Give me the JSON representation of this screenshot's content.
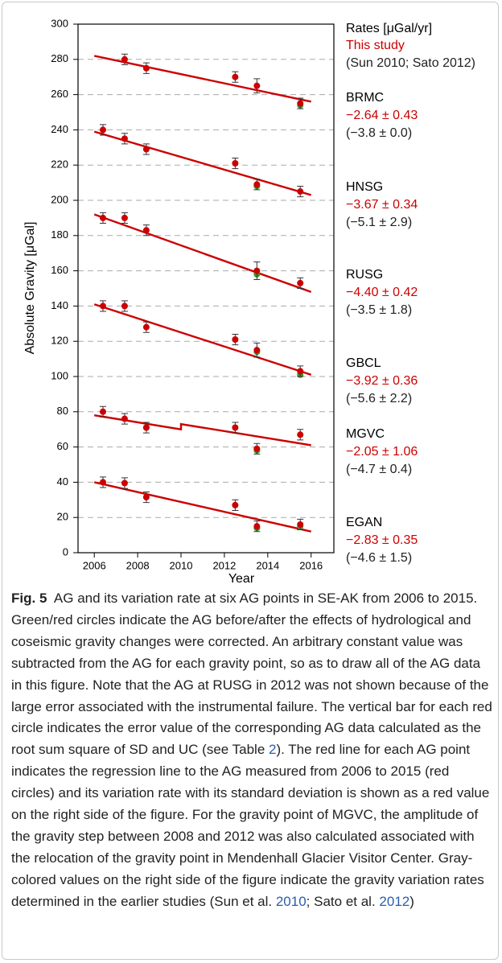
{
  "chart_data": {
    "type": "scatter",
    "x_label": "Year",
    "y_label": "Absolute Gravity [μGal]",
    "xlim": [
      2005.25,
      2017.05
    ],
    "xticks": [
      2006,
      2008,
      2010,
      2012,
      2014,
      2016
    ],
    "ylim": [
      0,
      300
    ],
    "yticks": [
      0,
      20,
      40,
      60,
      80,
      100,
      120,
      140,
      160,
      180,
      200,
      220,
      240,
      260,
      280,
      300
    ],
    "grid": true,
    "side_header": [
      "Rates [μGal/yr]",
      "This study",
      "(Sun 2010; Sato 2012)"
    ],
    "x": [
      2006.4,
      2007.4,
      2008.4,
      2012.5,
      2013.5,
      2015.5
    ],
    "color": "#cc0000",
    "before_color": "#3a9a2a",
    "series": [
      {
        "name": "BRMC",
        "values": [
          null,
          280,
          275,
          270,
          265,
          255
        ],
        "errors": [
          null,
          3,
          3,
          3,
          4,
          3
        ],
        "before_values": [
          null,
          null,
          null,
          null,
          null,
          254
        ],
        "rate_label": "−2.64 ± 0.43",
        "earlier_label": "(−3.8 ± 0.0)",
        "fit_x": [
          2006,
          2016
        ],
        "fit_values": [
          282,
          256
        ]
      },
      {
        "name": "HNSG",
        "values": [
          240,
          235,
          229,
          221,
          209,
          205
        ],
        "errors": [
          3,
          3,
          3,
          3,
          3,
          3
        ],
        "before_values": [
          null,
          null,
          null,
          null,
          208,
          null
        ],
        "rate_label": "−3.67 ± 0.34",
        "earlier_label": "(−5.1 ± 2.9)",
        "fit_x": [
          2006,
          2016
        ],
        "fit_values": [
          239,
          203
        ]
      },
      {
        "name": "RUSG",
        "values": [
          190,
          190,
          183,
          null,
          160,
          153
        ],
        "errors": [
          3,
          3,
          3,
          null,
          5,
          3
        ],
        "before_values": [
          null,
          null,
          null,
          null,
          158,
          null
        ],
        "rate_label": "−4.40 ± 0.42",
        "earlier_label": "(−3.5 ± 1.8)",
        "fit_x": [
          2006,
          2016
        ],
        "fit_values": [
          192,
          148
        ]
      },
      {
        "name": "GBCL",
        "values": [
          140,
          140,
          128,
          121,
          115,
          103
        ],
        "errors": [
          3,
          3,
          3,
          3,
          4,
          3
        ],
        "before_values": [
          null,
          null,
          null,
          null,
          114,
          101
        ],
        "rate_label": "−3.92 ± 0.36",
        "earlier_label": "(−5.6 ± 2.2)",
        "fit_x": [
          2006,
          2016
        ],
        "fit_values": [
          141,
          101
        ]
      },
      {
        "name": "MGVC",
        "values": [
          80,
          76,
          71,
          71,
          59,
          67
        ],
        "errors": [
          3,
          3,
          3,
          3,
          3,
          3
        ],
        "before_values": [
          null,
          null,
          71,
          null,
          58,
          null
        ],
        "rate_label": "−2.05 ± 1.06",
        "earlier_label": "(−4.7 ± 0.4)",
        "fit_x": [
          2006,
          2010,
          2010,
          2016
        ],
        "fit_values": [
          78,
          70,
          73,
          61
        ]
      },
      {
        "name": "EGAN",
        "values": [
          40,
          39.5,
          31.5,
          27,
          15,
          16
        ],
        "errors": [
          3,
          3,
          3,
          3,
          3,
          3
        ],
        "before_values": [
          null,
          null,
          null,
          null,
          14,
          15
        ],
        "rate_label": "−2.83 ± 0.35",
        "earlier_label": "(−4.6 ± 1.5)",
        "fit_x": [
          2006,
          2016
        ],
        "fit_values": [
          40,
          12
        ]
      }
    ]
  },
  "caption": {
    "label": "Fig. 5",
    "parts": [
      "AG and its variation rate at six AG points in SE-AK from 2006 to 2015. Green/red circles indicate the AG before/after the effects of hydrological and coseismic gravity changes were corrected. An arbitrary constant value was subtracted from the AG for each gravity point, so as to draw all of the AG data in this figure. Note that the AG at RUSG in 2012 was not shown because of the large error associated with the instrumental failure. The vertical bar for each red circle indicates the error value of the corresponding AG data calculated as the root sum square of SD and UC (see Table ",
      "2",
      "). The red line for each AG point indicates the regression line to the AG measured from 2006 to 2015 (red circles) and its variation rate with its standard deviation is shown as a red value on the right side of the figure. For the gravity point of MGVC, the amplitude of the gravity step between 2008 and 2012 was also calculated associated with the relocation of the gravity point in Mendenhall Glacier Visitor Center. Gray-colored values on the right side of the figure indicate the gravity variation rates determined in the earlier studies (Sun et al. ",
      "2010",
      "; Sato et al. ",
      "2012",
      ")"
    ]
  }
}
